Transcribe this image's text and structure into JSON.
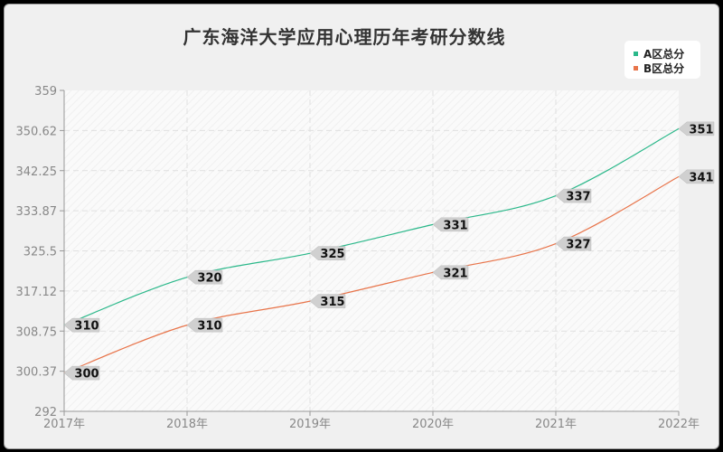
{
  "title": "广东海洋大学应用心理历年考研分数线",
  "legend": [
    {
      "label": "A区总分",
      "color": "#2bb88a"
    },
    {
      "label": "B区总分",
      "color": "#e8744a"
    }
  ],
  "chart_data": {
    "type": "line",
    "title": "广东海洋大学应用心理历年考研分数线",
    "xlabel": "",
    "ylabel": "",
    "categories": [
      "2017年",
      "2018年",
      "2019年",
      "2020年",
      "2021年",
      "2022年"
    ],
    "series": [
      {
        "name": "A区总分",
        "color": "#2bb88a",
        "values": [
          310,
          320,
          325,
          331,
          337,
          351
        ]
      },
      {
        "name": "B区总分",
        "color": "#e8744a",
        "values": [
          300,
          310,
          315,
          321,
          327,
          341
        ]
      }
    ],
    "ylim": [
      292,
      359
    ],
    "yticks": [
      "292",
      "300.37",
      "308.75",
      "317.12",
      "325.5",
      "333.87",
      "342.25",
      "350.62",
      "359"
    ],
    "grid": true,
    "legend_position": "top-right"
  }
}
